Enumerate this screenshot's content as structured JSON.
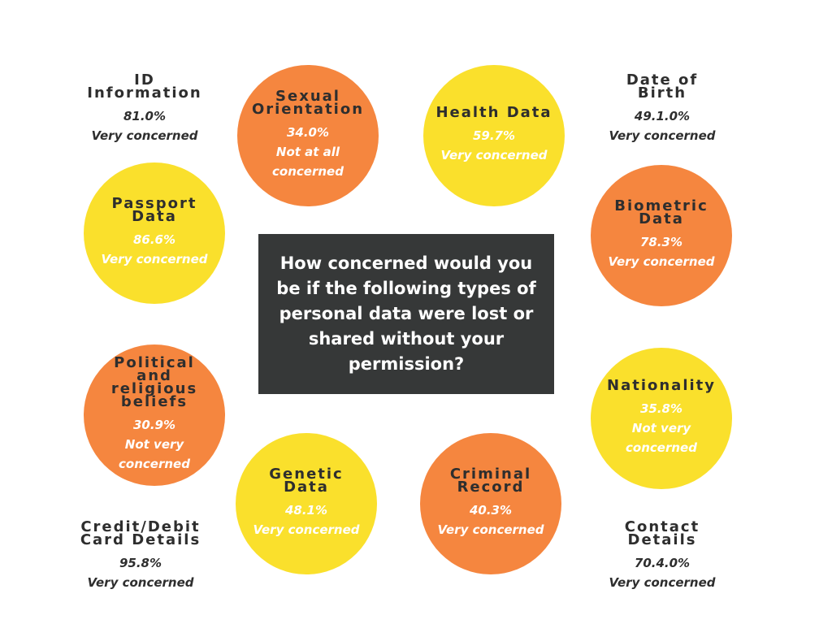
{
  "title": "How concerned would you be if the following types of personal data were lost or shared without your permission?",
  "items": [
    {
      "name": "ID Information",
      "percent": "81.0%",
      "level": "Very concerned",
      "color": "#ffffff"
    },
    {
      "name": "Sexual Orientation",
      "percent": "34.0%",
      "level": "Not at all concerned",
      "color": "#f5863f"
    },
    {
      "name": "Health Data",
      "percent": "59.7%",
      "level": "Very concerned",
      "color": "#fae02c"
    },
    {
      "name": "Date of Birth",
      "percent": "49.1.0%",
      "level": "Very concerned",
      "color": "#ffffff"
    },
    {
      "name": "Passport Data",
      "percent": "86.6%",
      "level": "Very concerned",
      "color": "#fae02c"
    },
    {
      "name": "Biometric Data",
      "percent": "78.3%",
      "level": "Very concerned",
      "color": "#f5863f"
    },
    {
      "name": "Political and religious beliefs",
      "percent": "30.9%",
      "level": "Not very concerned",
      "color": "#f5863f"
    },
    {
      "name": "Nationality",
      "percent": "35.8%",
      "level": "Not very concerned",
      "color": "#fae02c"
    },
    {
      "name": "Genetic Data",
      "percent": "48.1%",
      "level": "Very concerned",
      "color": "#fae02c"
    },
    {
      "name": "Criminal Record",
      "percent": "40.3%",
      "level": "Very concerned",
      "color": "#f5863f"
    },
    {
      "name": "Credit/Debit Card Details",
      "percent": "95.8%",
      "level": "Very concerned",
      "color": "#ffffff"
    },
    {
      "name": "Contact Details",
      "percent": "70.4.0%",
      "level": "Very concerned",
      "color": "#ffffff"
    }
  ]
}
